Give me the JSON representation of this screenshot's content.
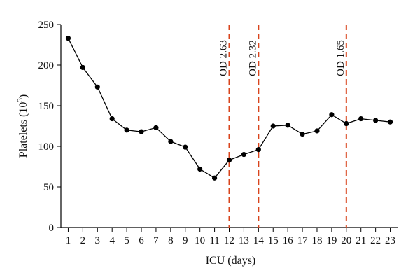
{
  "chart_data": {
    "type": "line",
    "xlabel": "ICU (days)",
    "ylabel": "Platelets (10",
    "ylabel_sup": "3",
    "ylabel_close": ")",
    "x": [
      1,
      2,
      3,
      4,
      5,
      6,
      7,
      8,
      9,
      10,
      11,
      12,
      13,
      14,
      15,
      16,
      17,
      18,
      19,
      20,
      21,
      22,
      23
    ],
    "x_tick_labels": [
      "1",
      "2",
      "3",
      "4",
      "5",
      "6",
      "7",
      "8",
      "9",
      "10",
      "11",
      "12",
      "13",
      "14",
      "15",
      "16",
      "17",
      "18",
      "19",
      "20",
      "21",
      "22",
      "23"
    ],
    "y_ticks": [
      0,
      50,
      100,
      150,
      200,
      250
    ],
    "y_tick_labels": [
      "0",
      "50",
      "100",
      "150",
      "200",
      "250"
    ],
    "ylim": [
      0,
      250
    ],
    "xlim": [
      0.5,
      23.5
    ],
    "grid": false,
    "series": [
      {
        "values": [
          233,
          197,
          173,
          134,
          120,
          118,
          123,
          106,
          99,
          72,
          61,
          83,
          90,
          96,
          125,
          126,
          115,
          119,
          139,
          128,
          134,
          132,
          130
        ]
      }
    ],
    "reference_lines": [
      {
        "x": 12,
        "label": "OD 2.63"
      },
      {
        "x": 14,
        "label": "OD 2.32"
      },
      {
        "x": 20,
        "label": "OD 1.65"
      }
    ],
    "colors": {
      "series": "#000000",
      "reference": "#d9441c"
    }
  }
}
